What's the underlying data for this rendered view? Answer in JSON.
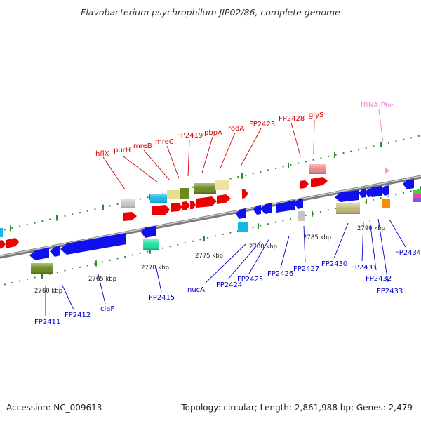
{
  "title": "Flavobacterium psychrophilum JIP02/86, complete genome",
  "footer": {
    "accession": "Accession: NC_009613",
    "summary": "Topology: circular; Length: 2,861,988 bp; Genes: 2,479"
  },
  "colors": {
    "backbone": "#8a8a8a",
    "tick": "#2e8b2e",
    "forward_label": "#d40000",
    "reverse_label": "#0000c8",
    "trna_label": "#e88ac8",
    "scale_label": "#222222"
  },
  "scale_labels": [
    "2760 kbp",
    "2765 kbp",
    "2770 kbp",
    "2775 kbp",
    "2780 kbp",
    "2785 kbp",
    "2790 kbp"
  ],
  "forward_labels": [
    "hflX",
    "purH",
    "mreB",
    "mreC",
    "FP2419",
    "pbpA",
    "rodA",
    "FP2423",
    "FP2428",
    "glyS",
    "tRNA-Phe"
  ],
  "reverse_labels": [
    "FP2411",
    "FP2412",
    "claF",
    "FP2415",
    "nucA",
    "FP2424",
    "FP2425",
    "FP2426",
    "FP2427",
    "FP2430",
    "FP2431",
    "FP2432",
    "FP2433",
    "FP2434"
  ]
}
